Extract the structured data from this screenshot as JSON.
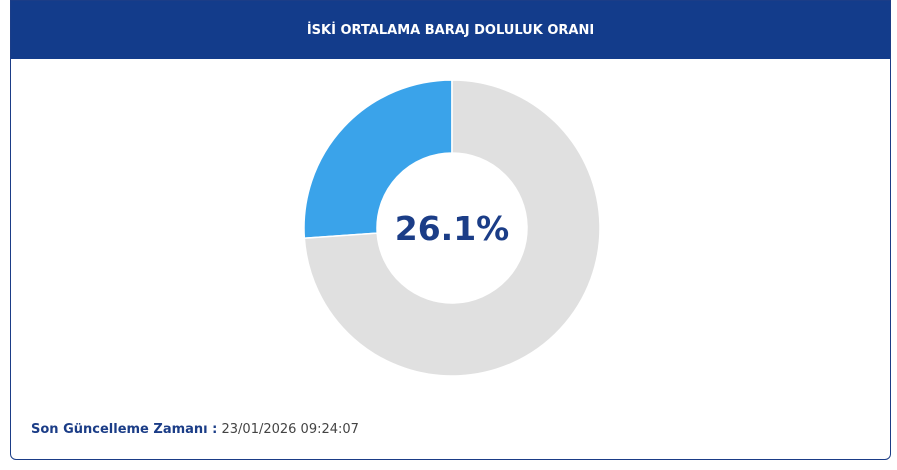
{
  "chart_data": {
    "type": "donut",
    "title": "İSKİ ORTALAMA BARAJ DOLULUK ORANI",
    "categories": [
      null,
      null
    ],
    "values": [
      26.1,
      73.9
    ],
    "value_labels": [
      "26.1%",
      null
    ],
    "colors": [
      "#3aa3ea",
      "#e0e0e0"
    ]
  },
  "footer": {
    "label": "Son Güncelleme Zamanı :",
    "value": "23/01/2026 09:24:07"
  }
}
